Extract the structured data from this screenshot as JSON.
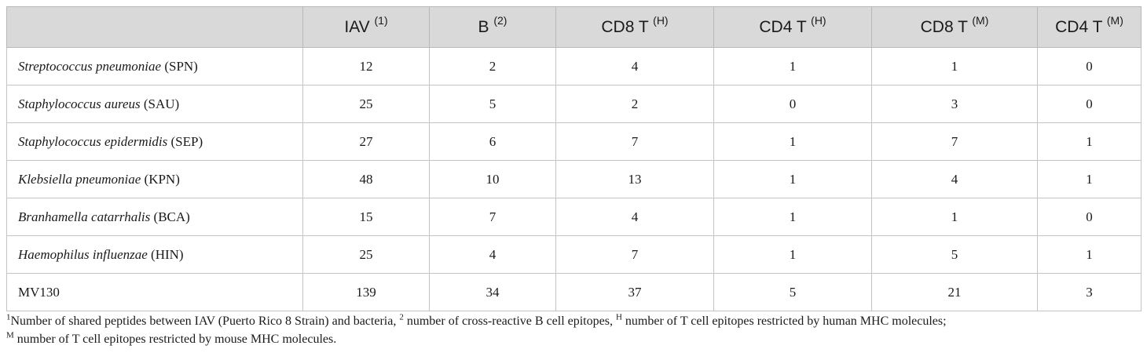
{
  "table": {
    "columns": [
      {
        "label": "IAV",
        "sup": "(1)"
      },
      {
        "label": "B",
        "sup": "(2)"
      },
      {
        "label": "CD8 T",
        "sup": "(H)"
      },
      {
        "label": "CD4 T",
        "sup": "(H)"
      },
      {
        "label": "CD8 T",
        "sup": "(M)"
      },
      {
        "label": "CD4 T",
        "sup": "(M)"
      }
    ],
    "rows": [
      {
        "species": "Streptococcus pneumoniae",
        "abbr": " (SPN)",
        "values": [
          "12",
          "2",
          "4",
          "1",
          "1",
          "0"
        ]
      },
      {
        "species": "Staphylococcus aureus",
        "abbr": " (SAU)",
        "values": [
          "25",
          "5",
          "2",
          "0",
          "3",
          "0"
        ]
      },
      {
        "species": "Staphylococcus epidermidis",
        "abbr": " (SEP)",
        "values": [
          "27",
          "6",
          "7",
          "1",
          "7",
          "1"
        ]
      },
      {
        "species": "Klebsiella pneumoniae",
        "abbr": " (KPN)",
        "values": [
          "48",
          "10",
          "13",
          "1",
          "4",
          "1"
        ]
      },
      {
        "species": "Branhamella catarrhalis",
        "abbr": " (BCA)",
        "values": [
          "15",
          "7",
          "4",
          "1",
          "1",
          "0"
        ]
      },
      {
        "species": "Haemophilus influenzae",
        "abbr": " (HIN)",
        "values": [
          "25",
          "4",
          "7",
          "1",
          "5",
          "1"
        ]
      },
      {
        "species": "",
        "abbr": "MV130",
        "values": [
          "139",
          "34",
          "37",
          "5",
          "21",
          "3"
        ]
      }
    ]
  },
  "footnote": {
    "line1": [
      {
        "sup": "1",
        "text": "Number of shared peptides between IAV (Puerto Rico 8 Strain) and bacteria, "
      },
      {
        "sup": "2",
        "text": " number of cross-reactive B cell epitopes, "
      },
      {
        "sup": "H",
        "text": " number of T cell epitopes restricted by human MHC molecules;"
      }
    ],
    "line2": [
      {
        "sup": "M",
        "text": " number of T cell epitopes restricted by mouse MHC molecules."
      }
    ]
  }
}
